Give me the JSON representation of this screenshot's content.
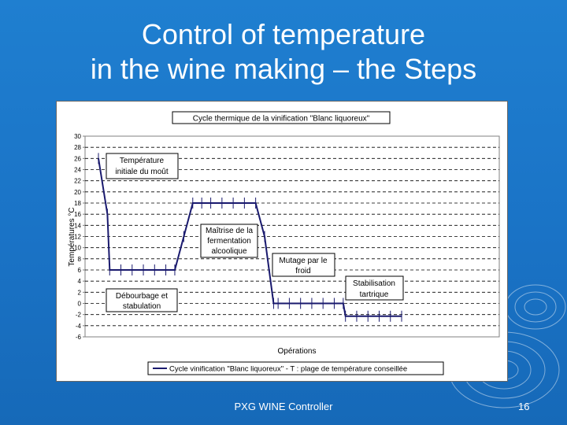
{
  "slide": {
    "title_line1": "Control of temperature",
    "title_line2": "in the wine making – the Steps",
    "footer": "PXG WINE Controller",
    "page_number": "16"
  },
  "chart_data": {
    "type": "line",
    "title": "Cycle thermique de la vinification \"Blanc liquoreux\"",
    "xlabel": "Opérations",
    "ylabel": "Températures °C",
    "ylim": [
      -6,
      30
    ],
    "yticks": [
      30,
      28,
      26,
      24,
      22,
      20,
      18,
      16,
      14,
      12,
      10,
      8,
      6,
      4,
      2,
      0,
      -2,
      -4,
      -6
    ],
    "grid": true,
    "legend": "bottom",
    "series": [
      {
        "name": "Cycle vinification \"Blanc liquoreux\" - T : plage de température conseillée",
        "color": "#1a1a6e",
        "x": [
          0,
          0.8,
          1,
          2,
          3,
          4,
          5,
          6,
          6.8,
          7.6,
          8.4,
          9.2,
          10,
          11,
          12,
          13,
          14,
          14.8,
          15.6,
          16,
          17,
          18,
          19,
          20,
          21,
          21.8,
          22,
          23,
          24,
          25,
          26,
          27
        ],
        "values": [
          26,
          16,
          6,
          6,
          6,
          6,
          6,
          6,
          6,
          12,
          18,
          18,
          18,
          18,
          18,
          18,
          18,
          12,
          0,
          0,
          0,
          0,
          0,
          0,
          0,
          0,
          -2.3,
          -2.3,
          -2.3,
          -2.3,
          -2.3,
          -2.3
        ]
      }
    ],
    "annotations": [
      {
        "line1": "Température",
        "line2": "initiale du moût"
      },
      {
        "line1": "Débourbage et",
        "line2": "stabulation"
      },
      {
        "line1": "Maîtrise de la",
        "line2": "fermentation",
        "line3": "alcoolique"
      },
      {
        "line1": "Mutage par le",
        "line2": "froid"
      },
      {
        "line1": "Stabilisation",
        "line2": "tartrique"
      }
    ]
  }
}
